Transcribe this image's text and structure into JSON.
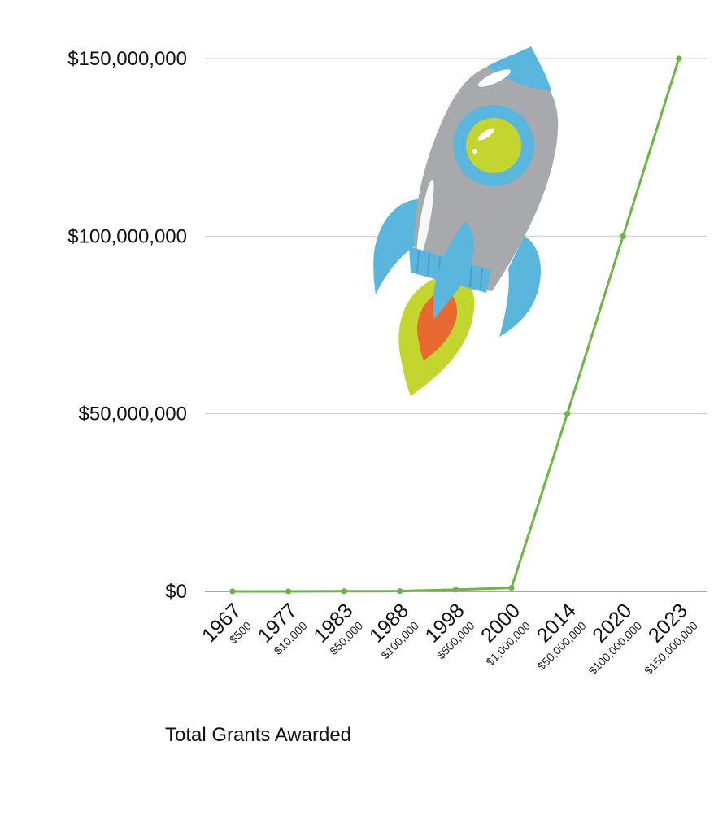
{
  "caption": "Total Grants Awarded",
  "chart_data": {
    "type": "line",
    "x": [
      "1967",
      "1977",
      "1983",
      "1988",
      "1998",
      "2000",
      "2014",
      "2020",
      "2023"
    ],
    "x_sublabels": [
      "$500",
      "$10,000",
      "$50,000",
      "$100,000",
      "$500,000",
      "$1,000,000",
      "$50,000,000",
      "$100,000,000",
      "$150,000,000"
    ],
    "values": [
      500,
      10000,
      50000,
      100000,
      500000,
      1000000,
      50000000,
      100000000,
      150000000
    ],
    "yticks": [
      0,
      50000000,
      100000000,
      150000000
    ],
    "ytick_labels": [
      "$0",
      "$50,000,000",
      "$100,000,000",
      "$150,000,000"
    ],
    "ylim": [
      0,
      150000000
    ],
    "grid": true,
    "line_color": "#6db544",
    "grid_color": "#cccccc",
    "decoration": "rocket-illustration"
  },
  "colors": {
    "rocket_body": "#a7a9ac",
    "rocket_fins": "#5bb6dd",
    "rocket_window": "#c3d62f",
    "flame_outer": "#c3d62f",
    "flame_inner": "#e8692f"
  }
}
